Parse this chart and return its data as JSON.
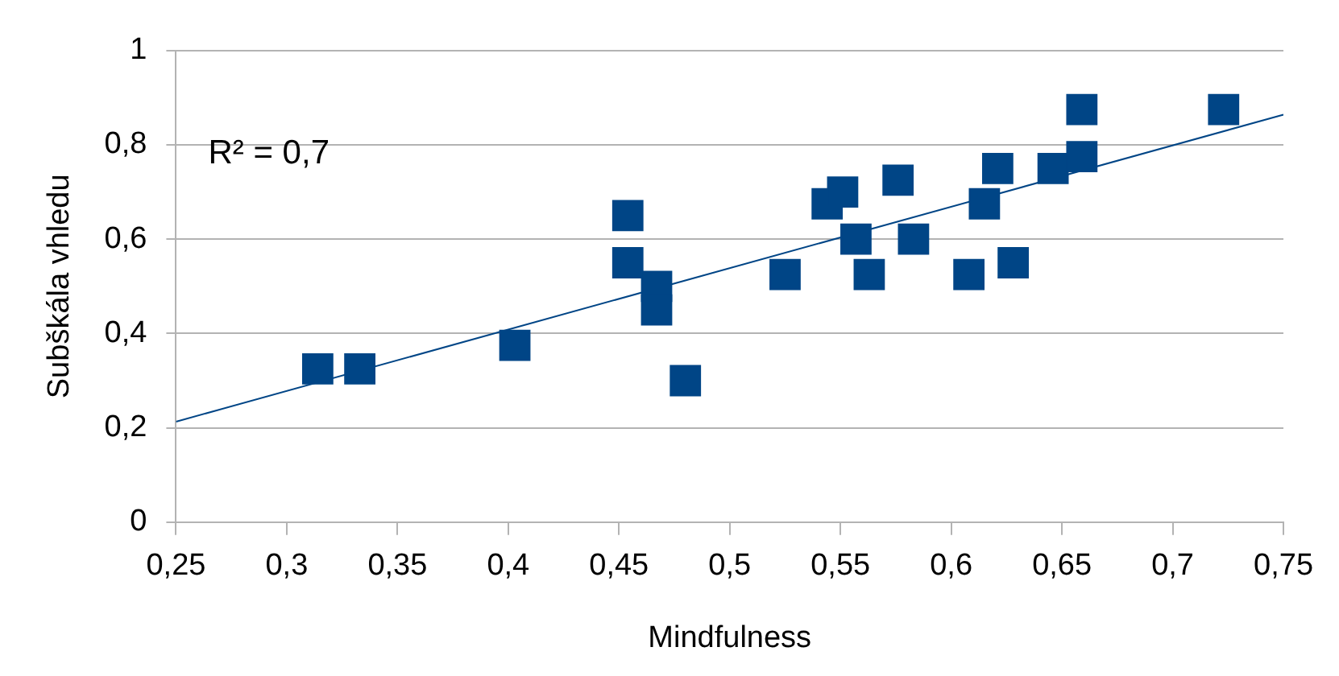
{
  "chart_data": {
    "type": "scatter",
    "xlabel": "Mindfulness",
    "ylabel": "Subškála vhledu",
    "annotations": [
      "R² = 0,7"
    ],
    "xlim": [
      0.25,
      0.75
    ],
    "xticks": [
      {
        "value": 0.25,
        "label": "0,25"
      },
      {
        "value": 0.3,
        "label": "0,3"
      },
      {
        "value": 0.35,
        "label": "0,35"
      },
      {
        "value": 0.4,
        "label": "0,4"
      },
      {
        "value": 0.45,
        "label": "0,45"
      },
      {
        "value": 0.5,
        "label": "0,5"
      },
      {
        "value": 0.55,
        "label": "0,55"
      },
      {
        "value": 0.6,
        "label": "0,6"
      },
      {
        "value": 0.65,
        "label": "0,65"
      },
      {
        "value": 0.7,
        "label": "0,7"
      },
      {
        "value": 0.75,
        "label": "0,75"
      }
    ],
    "ylim": [
      0,
      1
    ],
    "yticks": [
      0,
      {
        "value": 0.2,
        "label": "0,2"
      },
      {
        "value": 0.4,
        "label": "0,4"
      },
      {
        "value": 0.6,
        "label": "0,6"
      },
      {
        "value": 0.8,
        "label": "0,8"
      },
      1
    ],
    "grid": "y",
    "legend": false,
    "marker": "square",
    "series": [
      {
        "type": "scatter",
        "color": "#004586",
        "x": [
          0.314,
          0.333,
          0.403,
          0.454,
          0.454,
          0.467,
          0.467,
          0.48,
          0.525,
          0.544,
          0.551,
          0.557,
          0.563,
          0.576,
          0.583,
          0.608,
          0.615,
          0.621,
          0.628,
          0.646,
          0.659,
          0.659,
          0.723
        ],
        "values": [
          0.325,
          0.325,
          0.375,
          0.65,
          0.55,
          0.5,
          0.45,
          0.3,
          0.525,
          0.675,
          0.7,
          0.6,
          0.525,
          0.725,
          0.6,
          0.525,
          0.675,
          0.75,
          0.55,
          0.75,
          0.875,
          0.775,
          0.875
        ]
      },
      {
        "type": "line",
        "color": "#004586",
        "x": [
          0.25,
          0.75
        ],
        "values": [
          0.213,
          0.864
        ],
        "marker": "none"
      }
    ]
  }
}
